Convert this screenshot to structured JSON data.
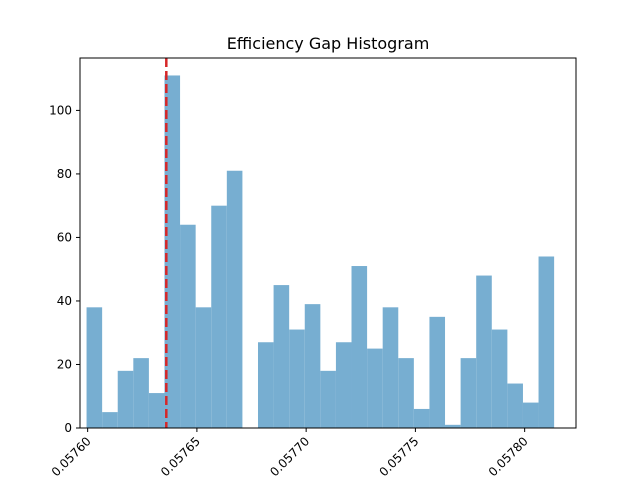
{
  "chart_data": {
    "type": "bar",
    "title": "Efficiency Gap Histogram",
    "xlabel": "",
    "ylabel": "",
    "xlim": [
      0.0575965,
      0.0578235
    ],
    "ylim": [
      0,
      116.5
    ],
    "bar_color": "#77aed1",
    "bin_width": 7.133e-06,
    "bin_start": 0.0575995,
    "values": [
      38,
      5,
      18,
      22,
      11,
      111,
      64,
      38,
      70,
      81,
      0,
      27,
      45,
      31,
      39,
      18,
      27,
      51,
      25,
      38,
      22,
      6,
      35,
      1,
      22,
      48,
      31,
      14,
      8,
      54
    ],
    "x_ticks": [
      {
        "value": 0.0576,
        "label": "0.05760"
      },
      {
        "value": 0.05765,
        "label": "0.05765"
      },
      {
        "value": 0.0577,
        "label": "0.05770"
      },
      {
        "value": 0.05775,
        "label": "0.05775"
      },
      {
        "value": 0.0578,
        "label": "0.05780"
      }
    ],
    "y_ticks": [
      {
        "value": 0,
        "label": "0"
      },
      {
        "value": 20,
        "label": "20"
      },
      {
        "value": 40,
        "label": "40"
      },
      {
        "value": 60,
        "label": "60"
      },
      {
        "value": 80,
        "label": "80"
      },
      {
        "value": 100,
        "label": "100"
      }
    ],
    "reference_line": {
      "x": 0.057636,
      "color": "#d62728",
      "style": "dashed"
    },
    "grid": false,
    "legend": "none"
  }
}
